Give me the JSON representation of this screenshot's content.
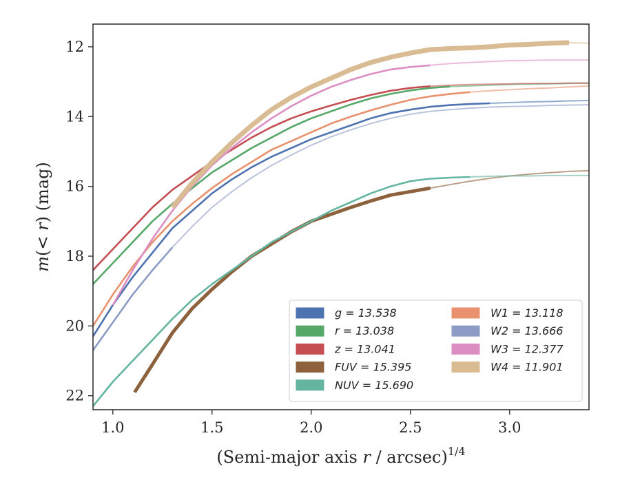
{
  "chart_data": {
    "type": "line",
    "xlabel": "(Semi-major axis r / arcsec)^1/4",
    "xlabel_parts": {
      "prefix": "(Semi-major axis ",
      "var": "r",
      "mid": " / arcsec)",
      "sup": "1/4"
    },
    "ylabel": "m(< r) (mag)",
    "ylabel_parts": {
      "var1": "m",
      "open": "(",
      "lt": "< ",
      "var2": "r",
      "close": ") (mag)"
    },
    "xlim": [
      0.9,
      3.4
    ],
    "ylim": [
      22.4,
      11.35
    ],
    "y_inverted": true,
    "xticks": [
      1.0,
      1.5,
      2.0,
      2.5,
      3.0
    ],
    "xtick_labels": [
      "1.0",
      "1.5",
      "2.0",
      "2.5",
      "3.0"
    ],
    "yticks": [
      12,
      14,
      16,
      18,
      20,
      22
    ],
    "ytick_labels": [
      "12",
      "14",
      "16",
      "18",
      "20",
      "22"
    ],
    "grid": false,
    "legend_position": "lower-right",
    "legend_columns": 2,
    "series": [
      {
        "name": "g",
        "legend_label": "g = 13.538",
        "color": "#4c72b0",
        "x": [
          0.9,
          1.0,
          1.1,
          1.2,
          1.3,
          1.4,
          1.5,
          1.6,
          1.7,
          1.8,
          1.9,
          2.0,
          2.1,
          2.2,
          2.3,
          2.4,
          2.5,
          2.6,
          2.7,
          2.8,
          2.9,
          3.0,
          3.1,
          3.2,
          3.3,
          3.4
        ],
        "y": [
          20.3,
          19.4,
          18.6,
          17.9,
          17.2,
          16.7,
          16.2,
          15.8,
          15.45,
          15.15,
          14.9,
          14.65,
          14.45,
          14.25,
          14.05,
          13.9,
          13.8,
          13.72,
          13.67,
          13.64,
          13.62,
          13.6,
          13.58,
          13.57,
          13.55,
          13.54
        ],
        "band_until_x": 2.9
      },
      {
        "name": "r",
        "legend_label": "r = 13.038",
        "color": "#55a868",
        "x": [
          0.9,
          1.0,
          1.1,
          1.2,
          1.3,
          1.4,
          1.5,
          1.6,
          1.7,
          1.8,
          1.9,
          2.0,
          2.1,
          2.2,
          2.3,
          2.4,
          2.5,
          2.6,
          2.7,
          2.8,
          2.9,
          3.0,
          3.1,
          3.2,
          3.3,
          3.4
        ],
        "y": [
          18.8,
          18.2,
          17.6,
          17.0,
          16.5,
          16.05,
          15.6,
          15.25,
          14.9,
          14.6,
          14.3,
          14.05,
          13.85,
          13.65,
          13.48,
          13.35,
          13.25,
          13.18,
          13.14,
          13.12,
          13.1,
          13.08,
          13.07,
          13.06,
          13.05,
          13.04
        ],
        "band_until_x": 2.7
      },
      {
        "name": "z",
        "legend_label": "z = 13.041",
        "color": "#c44e52",
        "x": [
          0.9,
          1.0,
          1.1,
          1.2,
          1.3,
          1.4,
          1.5,
          1.6,
          1.7,
          1.8,
          1.9,
          2.0,
          2.1,
          2.2,
          2.3,
          2.4,
          2.5,
          2.6,
          2.7,
          2.8,
          2.9,
          3.0,
          3.1,
          3.2,
          3.3,
          3.4
        ],
        "y": [
          18.4,
          17.8,
          17.2,
          16.6,
          16.1,
          15.7,
          15.3,
          14.95,
          14.6,
          14.3,
          14.05,
          13.85,
          13.68,
          13.52,
          13.38,
          13.26,
          13.18,
          13.13,
          13.1,
          13.08,
          13.07,
          13.06,
          13.05,
          13.05,
          13.04,
          13.04
        ],
        "band_until_x": 2.6
      },
      {
        "name": "FUV",
        "legend_label": "FUV = 15.395",
        "color": "#8c613c",
        "x": [
          1.11,
          1.2,
          1.3,
          1.4,
          1.5,
          1.6,
          1.7,
          1.8,
          1.9,
          2.0,
          2.1,
          2.2,
          2.3,
          2.4,
          2.5,
          2.6,
          2.7,
          2.8,
          2.9,
          3.0,
          3.1,
          3.2,
          3.3,
          3.4
        ],
        "y": [
          21.9,
          21.1,
          20.2,
          19.5,
          18.95,
          18.45,
          18.0,
          17.65,
          17.3,
          17.0,
          16.8,
          16.6,
          16.42,
          16.25,
          16.15,
          16.05,
          15.95,
          15.85,
          15.77,
          15.7,
          15.65,
          15.61,
          15.57,
          15.55
        ],
        "band_until_x": 2.6
      },
      {
        "name": "NUV",
        "legend_label": "NUV = 15.690",
        "color": "#64b5a0",
        "x": [
          0.9,
          1.0,
          1.1,
          1.2,
          1.3,
          1.4,
          1.5,
          1.6,
          1.7,
          1.8,
          1.9,
          2.0,
          2.1,
          2.2,
          2.3,
          2.4,
          2.5,
          2.6,
          2.7,
          2.8,
          2.9,
          3.0,
          3.1,
          3.2,
          3.3,
          3.4
        ],
        "y": [
          22.3,
          21.6,
          21.0,
          20.4,
          19.8,
          19.25,
          18.8,
          18.4,
          18.0,
          17.6,
          17.3,
          17.0,
          16.7,
          16.45,
          16.2,
          16.0,
          15.85,
          15.78,
          15.75,
          15.73,
          15.71,
          15.7,
          15.7,
          15.69,
          15.69,
          15.69
        ],
        "band_until_x": 2.85
      },
      {
        "name": "W1",
        "legend_label": "W1 = 13.118",
        "color": "#e8916c",
        "x": [
          0.9,
          1.0,
          1.1,
          1.2,
          1.3,
          1.4,
          1.5,
          1.6,
          1.7,
          1.8,
          1.9,
          2.0,
          2.1,
          2.2,
          2.3,
          2.4,
          2.5,
          2.6,
          2.7,
          2.8,
          2.9,
          3.0,
          3.1,
          3.2,
          3.3,
          3.4
        ],
        "y": [
          20.0,
          19.1,
          18.3,
          17.6,
          17.0,
          16.5,
          16.05,
          15.65,
          15.3,
          14.95,
          14.7,
          14.45,
          14.2,
          14.0,
          13.82,
          13.66,
          13.52,
          13.42,
          13.35,
          13.3,
          13.26,
          13.23,
          13.2,
          13.18,
          13.15,
          13.12
        ],
        "band_until_x": 2.8
      },
      {
        "name": "W2",
        "legend_label": "W2 = 13.666",
        "color": "#8c9bc4",
        "x": [
          0.9,
          1.0,
          1.1,
          1.2,
          1.3,
          1.4,
          1.5,
          1.6,
          1.7,
          1.8,
          1.9,
          2.0,
          2.1,
          2.2,
          2.3,
          2.4,
          2.5,
          2.6,
          2.7,
          2.8,
          2.9,
          3.0,
          3.1,
          3.2,
          3.3,
          3.4
        ],
        "y": [
          20.7,
          19.9,
          19.1,
          18.4,
          17.75,
          17.15,
          16.6,
          16.15,
          15.75,
          15.4,
          15.1,
          14.82,
          14.58,
          14.38,
          14.2,
          14.05,
          13.93,
          13.85,
          13.8,
          13.76,
          13.73,
          13.71,
          13.7,
          13.68,
          13.67,
          13.66
        ],
        "band_until_x": 1.3
      },
      {
        "name": "W3",
        "legend_label": "W3 = 12.377",
        "color": "#dc8ec3",
        "x": [
          1.0,
          1.1,
          1.2,
          1.3,
          1.4,
          1.5,
          1.6,
          1.7,
          1.8,
          1.9,
          2.0,
          2.1,
          2.2,
          2.3,
          2.4,
          2.5,
          2.6,
          2.7,
          2.8,
          2.9,
          3.0,
          3.1,
          3.2,
          3.3,
          3.4
        ],
        "y": [
          19.4,
          18.4,
          17.5,
          16.7,
          16.0,
          15.4,
          14.9,
          14.45,
          14.05,
          13.7,
          13.4,
          13.15,
          12.95,
          12.78,
          12.65,
          12.58,
          12.53,
          12.48,
          12.45,
          12.42,
          12.4,
          12.39,
          12.38,
          12.38,
          12.38
        ],
        "band_until_x": 2.62
      },
      {
        "name": "W4",
        "legend_label": "W4 = 11.901",
        "color": "#d9bc93",
        "x": [
          1.3,
          1.4,
          1.5,
          1.6,
          1.7,
          1.8,
          1.9,
          2.0,
          2.1,
          2.2,
          2.3,
          2.4,
          2.5,
          2.6,
          2.7,
          2.8,
          2.9,
          3.0,
          3.1,
          3.2,
          3.3,
          3.4
        ],
        "y": [
          16.6,
          15.9,
          15.3,
          14.75,
          14.25,
          13.8,
          13.45,
          13.15,
          12.9,
          12.65,
          12.45,
          12.3,
          12.18,
          12.08,
          12.05,
          12.03,
          12.0,
          11.95,
          11.93,
          11.9,
          11.88,
          11.9
        ],
        "band_until_x": 3.35
      }
    ]
  }
}
